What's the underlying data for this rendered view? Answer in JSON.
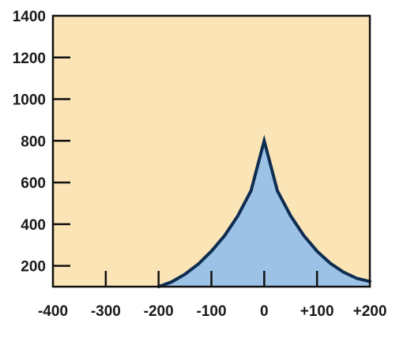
{
  "chart_data": {
    "type": "area",
    "title": "",
    "xlabel": "",
    "ylabel": "",
    "xlim": [
      -400,
      200
    ],
    "ylim": [
      100,
      1400
    ],
    "x_ticks": [
      -400,
      -300,
      -200,
      -100,
      0,
      100,
      200
    ],
    "x_tick_labels": [
      "-400",
      "-300",
      "-200",
      "-100",
      "0",
      "+100",
      "+200"
    ],
    "y_ticks": [
      200,
      400,
      600,
      800,
      1000,
      1200,
      1400
    ],
    "y_tick_labels": [
      "200",
      "400",
      "600",
      "800",
      "1000",
      "1200",
      "1400"
    ],
    "grid": false,
    "colors": {
      "plot_background": "#fbe5b6",
      "fill": "#9cc3e6",
      "line": "#0f2d52",
      "axis": "#111111"
    },
    "series": [
      {
        "x": [
          -200,
          -175,
          -150,
          -125,
          -100,
          -75,
          -50,
          -25,
          0,
          25,
          50,
          75,
          100,
          125,
          150,
          175,
          200
        ],
        "values": [
          100,
          123,
          160,
          208,
          270,
          345,
          440,
          560,
          800,
          560,
          440,
          345,
          270,
          212,
          170,
          140,
          125
        ]
      }
    ]
  }
}
